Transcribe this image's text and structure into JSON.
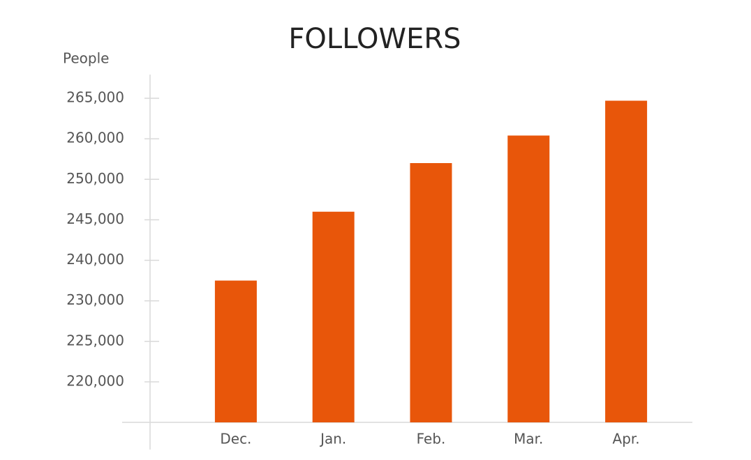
{
  "chart_data": {
    "type": "bar",
    "title": "FOLLOWERS",
    "y_label": "People",
    "categories": [
      "Dec.",
      "Jan.",
      "Feb.",
      "Mar.",
      "Apr."
    ],
    "values": [
      235000,
      246000,
      254000,
      260400,
      264700
    ],
    "color": "#e8560a",
    "ylim": [
      215000,
      265000
    ],
    "yticks": [
      {
        "value": 220000,
        "label": "220,000"
      },
      {
        "value": 225000,
        "label": "225,000"
      },
      {
        "value": 230000,
        "label": "230,000"
      },
      {
        "value": 240000,
        "label": "240,000"
      },
      {
        "value": 245000,
        "label": "245,000"
      },
      {
        "value": 250000,
        "label": "250,000"
      },
      {
        "value": 260000,
        "label": "260,000"
      },
      {
        "value": 265000,
        "label": "265,000"
      }
    ]
  }
}
